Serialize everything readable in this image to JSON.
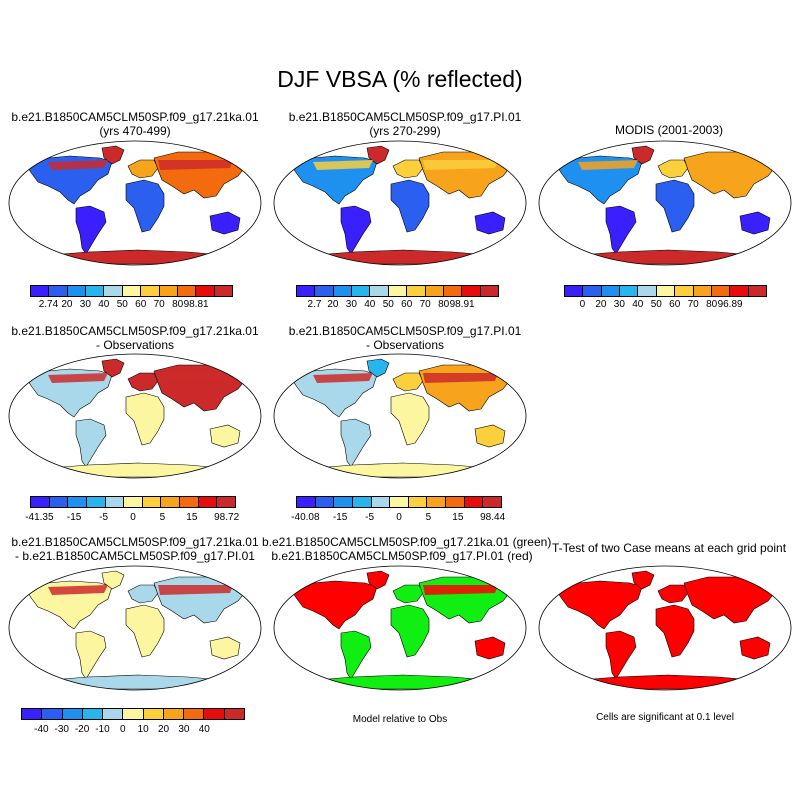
{
  "title": "DJF VBSA (% reflected)",
  "panels": [
    {
      "title": "b.e21.B1850CAM5CLM50SP.f09_g17.21ka.01\n(yrs 470-499)"
    },
    {
      "title": "b.e21.B1850CAM5CLM50SP.f09_g17.PI.01\n(yrs 270-299)"
    },
    {
      "title": "MODIS (2001-2003)"
    },
    {
      "title": "b.e21.B1850CAM5CLM50SP.f09_g17.21ka.01\n- Observations"
    },
    {
      "title": "b.e21.B1850CAM5CLM50SP.f09_g17.PI.01\n- Observations"
    },
    {
      "title": "b.e21.B1850CAM5CLM50SP.f09_g17.21ka.01\n- b.e21.B1850CAM5CLM50SP.f09_g17.PI.01"
    },
    {
      "title": "b.e21.B1850CAM5CLM50SP.f09_g17.21ka.01 (green)\nb.e21.B1850CAM5CLM50SP.f09_g17.PI.01 (red)"
    },
    {
      "title": "T-Test of two Case means at each grid point"
    }
  ],
  "colorbars": [
    {
      "labels": [
        "2.74",
        "20",
        "30",
        "40",
        "50",
        "60",
        "70",
        "80",
        "98.81"
      ]
    },
    {
      "labels": [
        "2.7",
        "20",
        "30",
        "40",
        "50",
        "60",
        "70",
        "80",
        "98.91"
      ]
    },
    {
      "labels": [
        "0",
        "20",
        "30",
        "40",
        "50",
        "60",
        "70",
        "80",
        "96.89"
      ]
    },
    {
      "labels": [
        "-41.35",
        "-15",
        "-5",
        "0",
        "5",
        "15",
        "98.72"
      ]
    },
    {
      "labels": [
        "-40.08",
        "-15",
        "-5",
        "0",
        "5",
        "15",
        "98.44"
      ]
    },
    {
      "labels": [
        "-40",
        "-30",
        "-20",
        "-10",
        "0",
        "10",
        "20",
        "30",
        "40"
      ]
    }
  ],
  "notes": {
    "panel7": "Model relative to Obs",
    "panel8": "Cells are significant at 0.1 level"
  },
  "colors": {
    "abs_scale": [
      "#3a1fff",
      "#2b5ff0",
      "#1e90f0",
      "#27b5ee",
      "#a8d8ea",
      "#fdf6a0",
      "#fbd03c",
      "#f8a31c",
      "#f46a0e",
      "#e70d0d",
      "#cc2a2a"
    ],
    "diff_scale": [
      "#3a1fff",
      "#2b5ff0",
      "#1e90f0",
      "#27b5ee",
      "#a8d8ea",
      "#fdf6a0",
      "#fbd03c",
      "#f8a31c",
      "#f46a0e",
      "#e70d0d",
      "#cc2a2a"
    ],
    "green": "#11ee11",
    "red": "#ff0000"
  }
}
